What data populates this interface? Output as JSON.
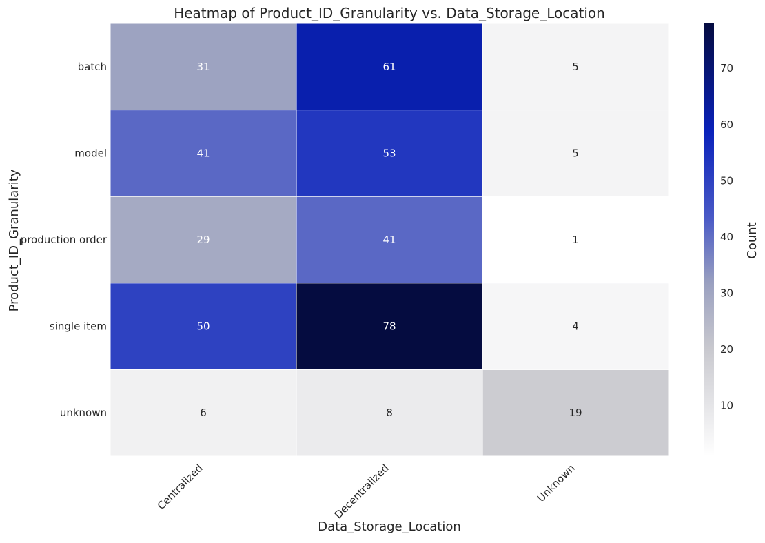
{
  "chart_data": {
    "type": "heatmap",
    "title": "Heatmap of Product_ID_Granularity vs. Data_Storage_Location",
    "xlabel": "Data_Storage_Location",
    "ylabel": "Product_ID_Granularity",
    "x_categories": [
      "Centralized",
      "Decentralized",
      "Unknown"
    ],
    "y_categories": [
      "batch",
      "model",
      "production order",
      "single item",
      "unknown"
    ],
    "values": [
      [
        31,
        61,
        5
      ],
      [
        41,
        53,
        5
      ],
      [
        29,
        41,
        1
      ],
      [
        50,
        78,
        4
      ],
      [
        6,
        8,
        19
      ]
    ],
    "colorbar": {
      "label": "Count",
      "min": 1,
      "max": 78,
      "ticks": [
        10,
        20,
        30,
        40,
        50,
        60,
        70
      ]
    },
    "colors": {
      "low": "#ffffff",
      "mid": "#c6c6cc",
      "mid2": "#4a5ac4",
      "high_blue": "#0a22bb",
      "high": "#050c40",
      "label_light": "#ffffff",
      "label_dark": "#262626"
    }
  }
}
